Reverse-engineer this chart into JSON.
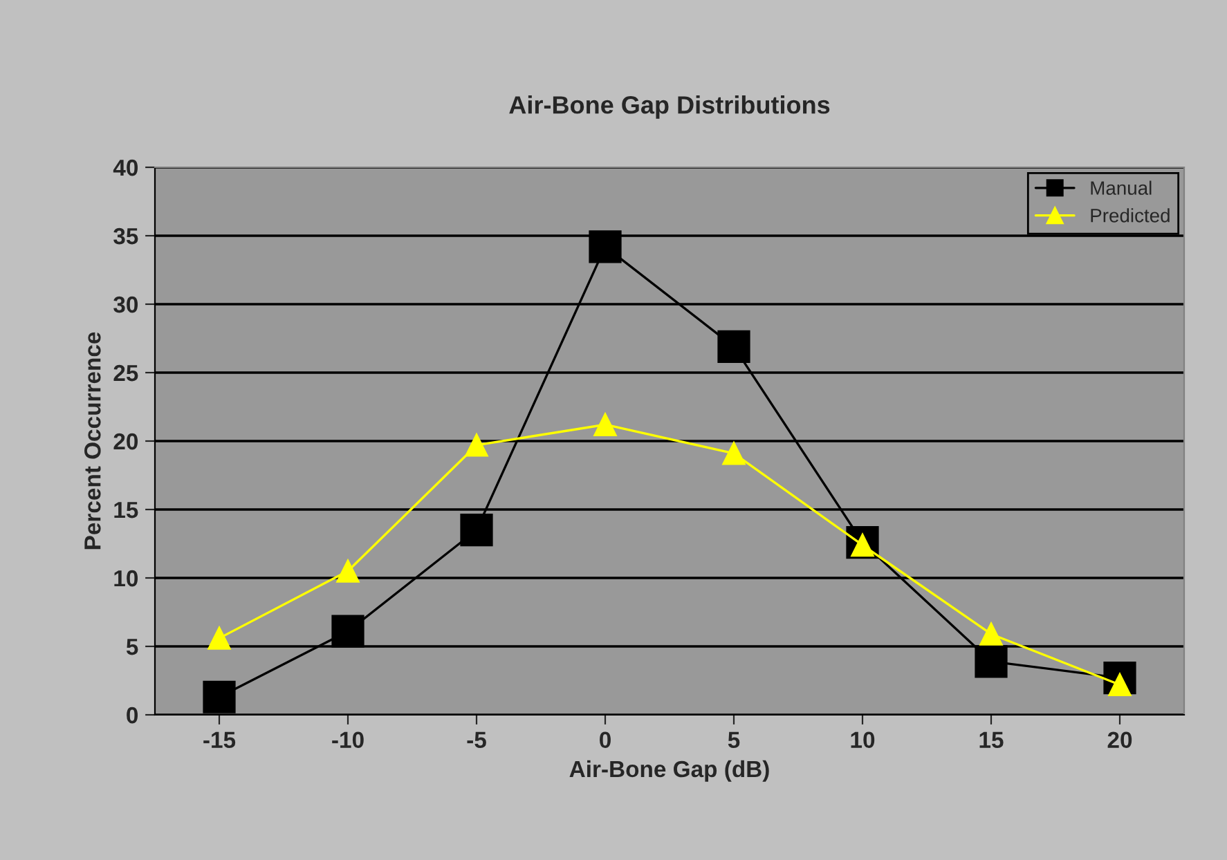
{
  "chart_data": {
    "type": "line",
    "title": "Air-Bone Gap Distributions",
    "xlabel": "Air-Bone Gap (dB)",
    "ylabel": "Percent Occurrence",
    "categories": [
      "-15",
      "-10",
      "-5",
      "0",
      "5",
      "10",
      "15",
      "20"
    ],
    "series": [
      {
        "name": "Manual",
        "color": "#000000",
        "marker": "square",
        "values": [
          1.3,
          6.1,
          13.5,
          34.2,
          26.9,
          12.6,
          3.9,
          2.7
        ]
      },
      {
        "name": "Predicted",
        "color": "#ffff00",
        "marker": "triangle",
        "values": [
          5.6,
          10.5,
          19.7,
          21.2,
          19.1,
          12.4,
          5.9,
          2.2
        ]
      }
    ],
    "ylim": [
      0,
      40
    ],
    "yticks": [
      0,
      5,
      10,
      15,
      20,
      25,
      30,
      35,
      40
    ],
    "grid": "y",
    "legend": "top right"
  }
}
